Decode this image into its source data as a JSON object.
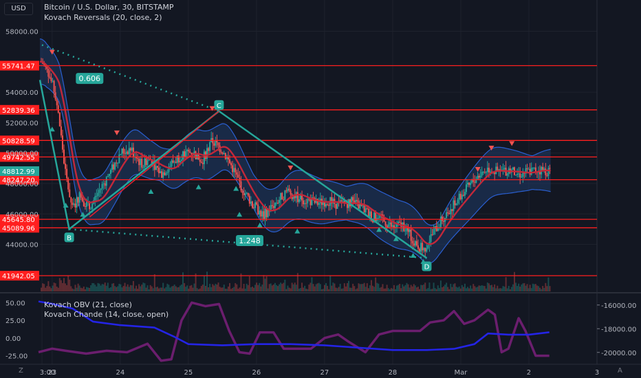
{
  "header": {
    "currency": "USD",
    "symbol_line": "Bitcoin / U.S. Dollar, 30, BITSTAMP",
    "indicator_line": "Kovach Reversals (20, close, 2)"
  },
  "sub_header": {
    "obv_label": "Kovach OBV (21, close)",
    "chande_label": "Kovach Chande (14, close, open)"
  },
  "colors": {
    "background": "#131722",
    "grid": "#1e222d",
    "up": "#26a69a",
    "down": "#ef5350",
    "band_fill": "#1f3a66",
    "band_line": "#2a5fd1",
    "red_ma": "#c2283a",
    "pattern": "#26a69a",
    "level": "#ff1f1f",
    "obv": "#2424e6",
    "chande": "#6b1e6e",
    "price_tag": "#26a69a"
  },
  "corners": {
    "left": "Z",
    "right": "A"
  },
  "chart_data": {
    "type": "candlestick",
    "x_ticks": [
      "3:00",
      "23",
      "24",
      "25",
      "26",
      "27",
      "28",
      "Mar",
      "2",
      "3"
    ],
    "y_ticks": [
      44000,
      46000,
      48000,
      50000,
      52000,
      54000,
      58000
    ],
    "y_tick_labels": [
      "44000.00",
      "46000.00",
      "48000.00",
      "50000.00",
      "52000.00",
      "54000.00",
      "58000.00"
    ],
    "ylim": [
      41000,
      58700
    ],
    "levels": [
      55741.47,
      52839.36,
      50828.59,
      49742.55,
      48247.2,
      45645.8,
      45089.96,
      41942.05
    ],
    "level_labels": [
      "55741.47",
      "52839.36",
      "50828.59",
      "49742.55",
      "48247.20",
      "45645.80",
      "45089.96",
      "41942.05"
    ],
    "current_price": 48812.99,
    "current_price_label": "48812.99",
    "pattern_points": [
      {
        "label": "B",
        "day": 23.25,
        "price": 45000
      },
      {
        "label": "C",
        "day": 25.45,
        "price": 52750
      },
      {
        "label": "D",
        "day": 28.5,
        "price": 43100
      }
    ],
    "pattern_ratios": [
      {
        "text": "0.606",
        "day": 23.55,
        "price": 54900
      },
      {
        "text": "1.248",
        "day": 25.9,
        "price": 44250
      }
    ],
    "price_path": [
      [
        22.85,
        56000
      ],
      [
        22.95,
        55200
      ],
      [
        23.05,
        53800
      ],
      [
        23.12,
        51500
      ],
      [
        23.2,
        48500
      ],
      [
        23.3,
        46300
      ],
      [
        23.4,
        47200
      ],
      [
        23.55,
        46400
      ],
      [
        23.7,
        47600
      ],
      [
        23.85,
        48700
      ],
      [
        24.0,
        50000
      ],
      [
        24.15,
        50300
      ],
      [
        24.3,
        49300
      ],
      [
        24.45,
        49600
      ],
      [
        24.6,
        48600
      ],
      [
        24.75,
        49300
      ],
      [
        24.9,
        49900
      ],
      [
        25.05,
        50100
      ],
      [
        25.2,
        49500
      ],
      [
        25.35,
        50800
      ],
      [
        25.5,
        50200
      ],
      [
        25.65,
        49000
      ],
      [
        25.8,
        47600
      ],
      [
        25.95,
        46600
      ],
      [
        26.1,
        45900
      ],
      [
        26.25,
        46600
      ],
      [
        26.45,
        47500
      ],
      [
        26.6,
        47100
      ],
      [
        26.75,
        46900
      ],
      [
        26.9,
        46700
      ],
      [
        27.05,
        46900
      ],
      [
        27.2,
        46600
      ],
      [
        27.4,
        46800
      ],
      [
        27.55,
        46400
      ],
      [
        27.7,
        45800
      ],
      [
        27.85,
        45600
      ],
      [
        28.0,
        45100
      ],
      [
        28.15,
        45300
      ],
      [
        28.3,
        44300
      ],
      [
        28.45,
        43600
      ],
      [
        28.6,
        44800
      ],
      [
        28.75,
        45800
      ],
      [
        28.95,
        46900
      ],
      [
        29.1,
        47700
      ],
      [
        29.25,
        48500
      ],
      [
        29.4,
        49000
      ],
      [
        29.55,
        48700
      ],
      [
        29.7,
        48900
      ],
      [
        29.85,
        48600
      ],
      [
        30.0,
        48800
      ],
      [
        30.15,
        48900
      ],
      [
        30.3,
        48812
      ]
    ],
    "obv_ticks": [
      -16000,
      -18000,
      -20000
    ],
    "obv_tick_labels": [
      "-16000.00",
      "-18000.00",
      "-20000.00"
    ],
    "obv_range": [
      -21000,
      -15200
    ],
    "chande_ticks": [
      50,
      25,
      0,
      -25
    ],
    "chande_tick_labels": [
      "50.00",
      "25.00",
      "0.00",
      "-25.00"
    ],
    "chande_range": [
      -37,
      60
    ],
    "obv_series": [
      [
        22.8,
        -15700
      ],
      [
        23.0,
        -15900
      ],
      [
        23.3,
        -16300
      ],
      [
        23.6,
        -17400
      ],
      [
        24.0,
        -17700
      ],
      [
        24.5,
        -17900
      ],
      [
        24.8,
        -18700
      ],
      [
        25.0,
        -19300
      ],
      [
        25.5,
        -19400
      ],
      [
        26.0,
        -19300
      ],
      [
        26.5,
        -19300
      ],
      [
        27.0,
        -19400
      ],
      [
        27.5,
        -19600
      ],
      [
        28.0,
        -19800
      ],
      [
        28.5,
        -19800
      ],
      [
        28.9,
        -19700
      ],
      [
        29.2,
        -19300
      ],
      [
        29.4,
        -18400
      ],
      [
        29.7,
        -18500
      ],
      [
        30.0,
        -18500
      ],
      [
        30.3,
        -18300
      ]
    ],
    "chande_series": [
      [
        22.8,
        -20
      ],
      [
        23.0,
        -15
      ],
      [
        23.2,
        -18
      ],
      [
        23.5,
        -22
      ],
      [
        23.8,
        -18
      ],
      [
        24.1,
        -20
      ],
      [
        24.4,
        -8
      ],
      [
        24.6,
        -32
      ],
      [
        24.75,
        -30
      ],
      [
        24.9,
        25
      ],
      [
        25.05,
        50
      ],
      [
        25.25,
        45
      ],
      [
        25.45,
        48
      ],
      [
        25.6,
        10
      ],
      [
        25.75,
        -20
      ],
      [
        25.9,
        -22
      ],
      [
        26.05,
        8
      ],
      [
        26.25,
        8
      ],
      [
        26.4,
        -15
      ],
      [
        26.6,
        -15
      ],
      [
        26.8,
        -15
      ],
      [
        27.0,
        0
      ],
      [
        27.2,
        5
      ],
      [
        27.35,
        -5
      ],
      [
        27.6,
        -20
      ],
      [
        27.8,
        5
      ],
      [
        28.0,
        10
      ],
      [
        28.2,
        10
      ],
      [
        28.4,
        10
      ],
      [
        28.55,
        22
      ],
      [
        28.75,
        25
      ],
      [
        28.9,
        38
      ],
      [
        29.05,
        20
      ],
      [
        29.2,
        25
      ],
      [
        29.4,
        40
      ],
      [
        29.5,
        33
      ],
      [
        29.6,
        -20
      ],
      [
        29.7,
        -15
      ],
      [
        29.85,
        28
      ],
      [
        29.95,
        10
      ],
      [
        30.1,
        -25
      ],
      [
        30.3,
        -25
      ]
    ]
  }
}
